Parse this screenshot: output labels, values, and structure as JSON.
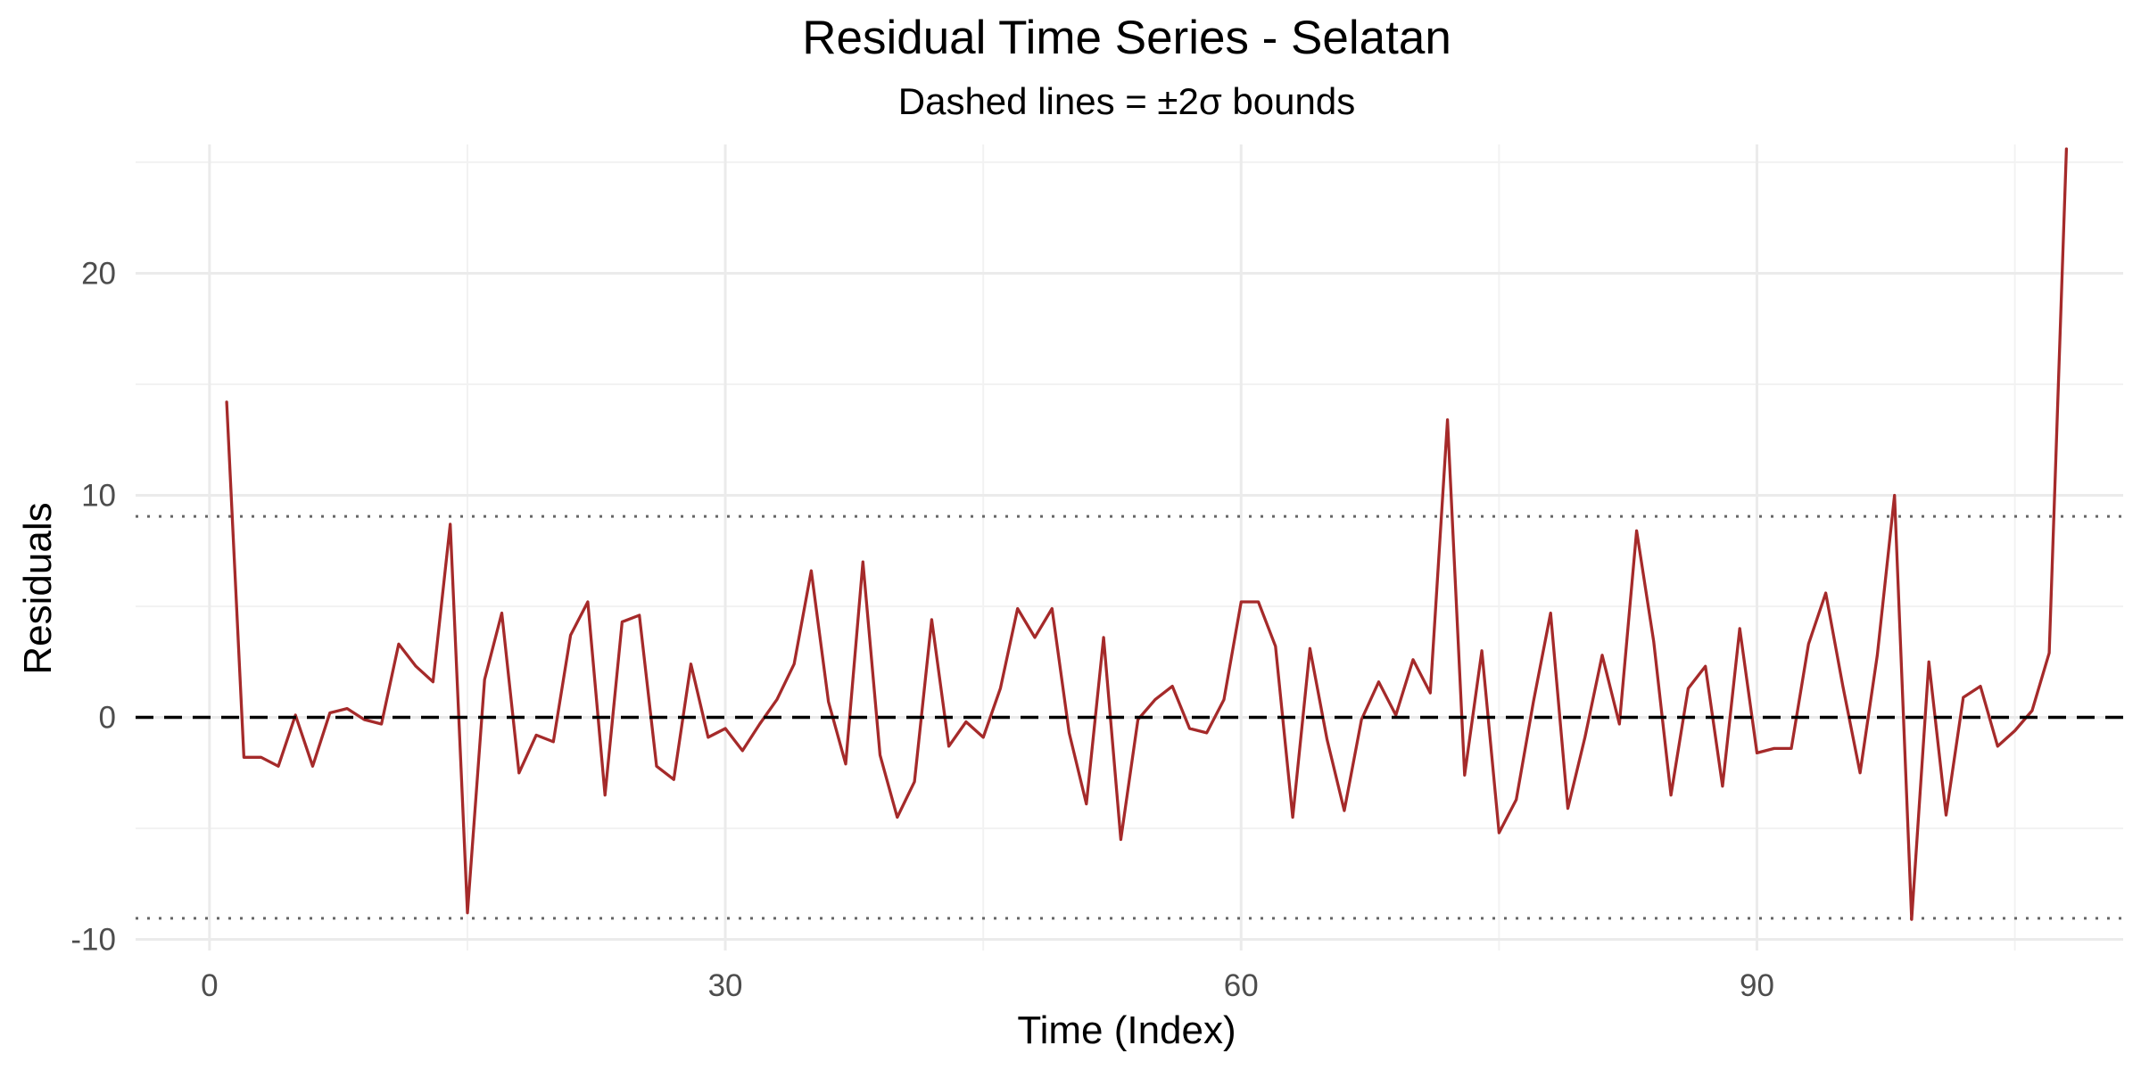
{
  "chart_data": {
    "type": "line",
    "title": "Residual Time Series - Selatan",
    "subtitle": "Dashed lines = ±2σ bounds",
    "xlabel": "Time (Index)",
    "ylabel": "Residuals",
    "xlim": [
      -4.3,
      111.3
    ],
    "ylim": [
      -10.5,
      25.8
    ],
    "x_ticks": [
      0,
      30,
      60,
      90
    ],
    "x_tick_labels": [
      "0",
      "30",
      "60",
      "90"
    ],
    "y_ticks": [
      -10,
      0,
      10,
      20
    ],
    "y_tick_labels": [
      "-10",
      "0",
      "10",
      "20"
    ],
    "grid": true,
    "legend": "none",
    "colors": {
      "line": "#A52A2A",
      "zero_line": "#000000",
      "bounds": "#666666"
    },
    "reference_lines": {
      "zero": 0,
      "upper": 9.05,
      "lower": -9.05
    },
    "series": [
      {
        "x": [
          1,
          2,
          3,
          4,
          5,
          6,
          7,
          8,
          9,
          10,
          11,
          12,
          13,
          14,
          15,
          16,
          17,
          18,
          19,
          20,
          21,
          22,
          23,
          24,
          25,
          26,
          27,
          28,
          29,
          30,
          31,
          32,
          33,
          34,
          35,
          36,
          37,
          38,
          39,
          40,
          41,
          42,
          43,
          44,
          45,
          46,
          47,
          48,
          49,
          50,
          51,
          52,
          53,
          54,
          55,
          56,
          57,
          58,
          59,
          60,
          61,
          62,
          63,
          64,
          65,
          66,
          67,
          68,
          69,
          70,
          71,
          72,
          73,
          74,
          75,
          76,
          77,
          78,
          79,
          80,
          81,
          82,
          83,
          84,
          85,
          86,
          87,
          88,
          89,
          90,
          91,
          92,
          93,
          94,
          95,
          96,
          97,
          98,
          99,
          100,
          101,
          102,
          103,
          104,
          105,
          106,
          107,
          108
        ],
        "values": [
          14.2,
          -1.8,
          -1.8,
          -2.2,
          0.1,
          -2.2,
          0.2,
          0.4,
          -0.1,
          -0.3,
          3.3,
          2.3,
          1.6,
          8.7,
          -8.8,
          1.7,
          4.7,
          -2.5,
          -0.8,
          -1.1,
          3.7,
          5.2,
          -3.5,
          4.3,
          4.6,
          -2.2,
          -2.8,
          2.4,
          -0.9,
          -0.5,
          -1.5,
          -0.3,
          0.8,
          2.4,
          6.6,
          0.7,
          -2.1,
          7.0,
          -1.7,
          -4.5,
          -2.9,
          4.4,
          -1.3,
          -0.2,
          -0.9,
          1.3,
          4.9,
          3.6,
          4.9,
          -0.7,
          -3.9,
          3.6,
          -5.5,
          -0.1,
          0.8,
          1.4,
          -0.5,
          -0.7,
          0.8,
          5.2,
          5.2,
          3.2,
          -4.5,
          3.1,
          -1.0,
          -4.2,
          -0.1,
          1.6,
          0.1,
          2.6,
          1.1,
          13.4,
          -2.6,
          3.0,
          -5.2,
          -3.7,
          0.7,
          4.7,
          -4.1,
          -0.9,
          2.8,
          -0.3,
          8.4,
          3.4,
          -3.5,
          1.3,
          2.3,
          -3.1,
          4.0,
          -1.6,
          -1.4,
          -1.4,
          3.3,
          5.6,
          1.4,
          -2.5,
          2.8,
          10.0,
          -9.1,
          2.5,
          -4.4,
          0.9,
          1.4,
          -1.3,
          -0.6,
          0.3,
          2.9,
          25.6
        ]
      }
    ]
  }
}
